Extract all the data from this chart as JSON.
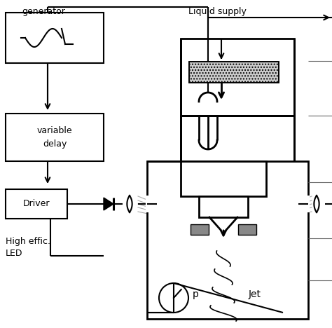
{
  "bg": "#ffffff",
  "lc": "#000000",
  "gc": "#aaaaaa",
  "figsize": [
    4.74,
    4.68
  ],
  "dpi": 100,
  "labels": {
    "generator": "generator",
    "liquid_supply": "Liquid supply",
    "variable_delay": "variable\ndelay",
    "driver": "Driver",
    "high_effic_led": "High effic.\nLED",
    "jet": "Jet",
    "p": "p"
  },
  "font_size": 9
}
